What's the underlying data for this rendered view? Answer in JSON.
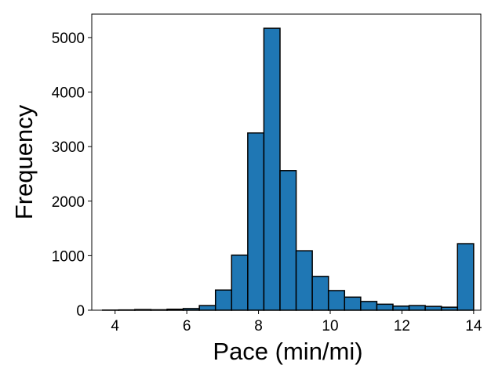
{
  "chart_data": {
    "type": "bar",
    "title": "",
    "xlabel": "Pace (min/mi)",
    "ylabel": "Frequency",
    "xlim": [
      3.35,
      14.2
    ],
    "ylim": [
      0,
      5430
    ],
    "x_ticks": [
      4,
      6,
      8,
      10,
      12,
      14
    ],
    "y_ticks": [
      0,
      1000,
      2000,
      3000,
      4000,
      5000
    ],
    "grid": false,
    "bar_color": "#1f77b4",
    "edge_color": "#000000",
    "bins": [
      {
        "x0": 3.65,
        "x1": 4.1,
        "count": 2
      },
      {
        "x0": 4.1,
        "x1": 4.55,
        "count": 5
      },
      {
        "x0": 4.55,
        "x1": 5.0,
        "count": 12
      },
      {
        "x0": 5.0,
        "x1": 5.45,
        "count": 8
      },
      {
        "x0": 5.45,
        "x1": 5.9,
        "count": 18
      },
      {
        "x0": 5.9,
        "x1": 6.35,
        "count": 30
      },
      {
        "x0": 6.35,
        "x1": 6.8,
        "count": 85
      },
      {
        "x0": 6.8,
        "x1": 7.25,
        "count": 370
      },
      {
        "x0": 7.25,
        "x1": 7.7,
        "count": 1010
      },
      {
        "x0": 7.7,
        "x1": 8.15,
        "count": 3250
      },
      {
        "x0": 8.15,
        "x1": 8.6,
        "count": 5170
      },
      {
        "x0": 8.6,
        "x1": 9.05,
        "count": 2560
      },
      {
        "x0": 9.05,
        "x1": 9.5,
        "count": 1090
      },
      {
        "x0": 9.5,
        "x1": 9.95,
        "count": 620
      },
      {
        "x0": 9.95,
        "x1": 10.4,
        "count": 360
      },
      {
        "x0": 10.4,
        "x1": 10.85,
        "count": 240
      },
      {
        "x0": 10.85,
        "x1": 11.3,
        "count": 160
      },
      {
        "x0": 11.3,
        "x1": 11.75,
        "count": 110
      },
      {
        "x0": 11.75,
        "x1": 12.2,
        "count": 75
      },
      {
        "x0": 12.2,
        "x1": 12.65,
        "count": 85
      },
      {
        "x0": 12.65,
        "x1": 13.1,
        "count": 70
      },
      {
        "x0": 13.1,
        "x1": 13.55,
        "count": 55
      },
      {
        "x0": 13.55,
        "x1": 14.0,
        "count": 1220
      }
    ]
  }
}
